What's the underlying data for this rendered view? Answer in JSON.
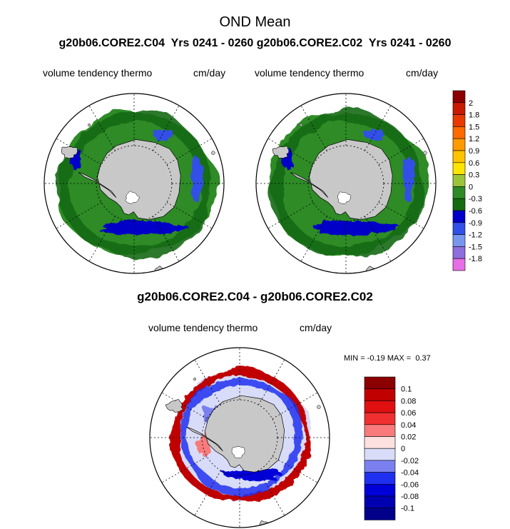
{
  "figure": {
    "title": "OND Mean",
    "subtitle": "g20b06.CORE2.C04  Yrs 0241 - 0260 g20b06.CORE2.C02  Yrs 0241 - 0260",
    "diff_title": "g20b06.CORE2.C04 - g20b06.CORE2.C02"
  },
  "chart_data": [
    {
      "type": "heatmap",
      "projection": "south-polar-stereographic",
      "left_label": "volume tendency thermo",
      "right_label": "cm/day",
      "colorbar": {
        "labels": [
          "2",
          "1.8",
          "1.5",
          "1.2",
          "0.9",
          "0.6",
          "0.3",
          "0",
          "-0.3",
          "-0.6",
          "-0.9",
          "-1.2",
          "-1.5",
          "-1.8"
        ],
        "colors": [
          "#8b0000",
          "#c81a00",
          "#e83a00",
          "#ff6a00",
          "#ff9a00",
          "#ffc400",
          "#ffe400",
          "#9cc43a",
          "#2e8b25",
          "#156b12",
          "#0000c8",
          "#3050e8",
          "#7896ee",
          "#8c6edc",
          "#e66ee6"
        ]
      }
    },
    {
      "type": "heatmap",
      "projection": "south-polar-stereographic",
      "left_label": "volume tendency thermo",
      "right_label": "cm/day"
    },
    {
      "type": "heatmap",
      "projection": "south-polar-stereographic",
      "left_label": "volume tendency thermo",
      "right_label": "cm/day",
      "min_label": "MIN =",
      "min": "-0.19",
      "max_label": "MAX =",
      "max": "0.37",
      "colorbar": {
        "labels": [
          "0.1",
          "0.08",
          "0.06",
          "0.04",
          "0.02",
          "0",
          "-0.02",
          "-0.04",
          "-0.06",
          "-0.08",
          "-0.1"
        ],
        "colors": [
          "#8b0000",
          "#c00000",
          "#e01010",
          "#f03030",
          "#f87a7a",
          "#fde0e0",
          "#d8dcf8",
          "#7a80f0",
          "#2030f0",
          "#0000d8",
          "#0000b0",
          "#00008b"
        ]
      }
    }
  ]
}
